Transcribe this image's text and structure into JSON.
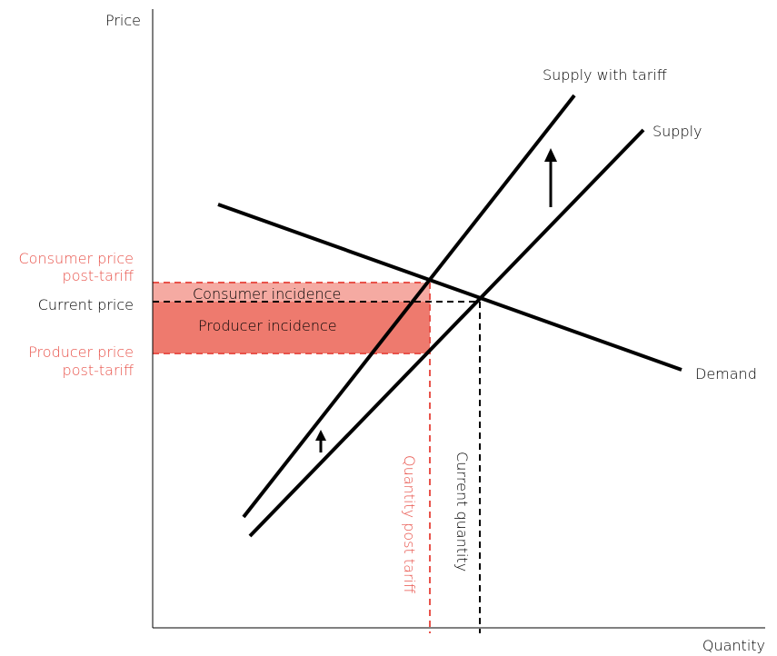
{
  "axes": {
    "y_label": "Price",
    "x_label": "Quantity"
  },
  "curves": {
    "supply_with_tariff": "Supply with tariff",
    "supply": "Supply",
    "demand": "Demand"
  },
  "price_labels": {
    "consumer_price_line1": "Consumer price",
    "consumer_price_line2": "post-tariff",
    "current_price": "Current price",
    "producer_price_line1": "Producer price",
    "producer_price_line2": "post-tariff"
  },
  "regions": {
    "consumer_incidence": "Consumer incidence",
    "producer_incidence": "Producer incidence"
  },
  "quantity_labels": {
    "quantity_post_tariff": "Quantity post tariff",
    "current_quantity": "Current quantity"
  },
  "colors": {
    "ink": "#000000",
    "accent": "#e8524a",
    "consumer_fill": "#f5aaa2",
    "producer_fill": "#ee7a6e"
  }
}
